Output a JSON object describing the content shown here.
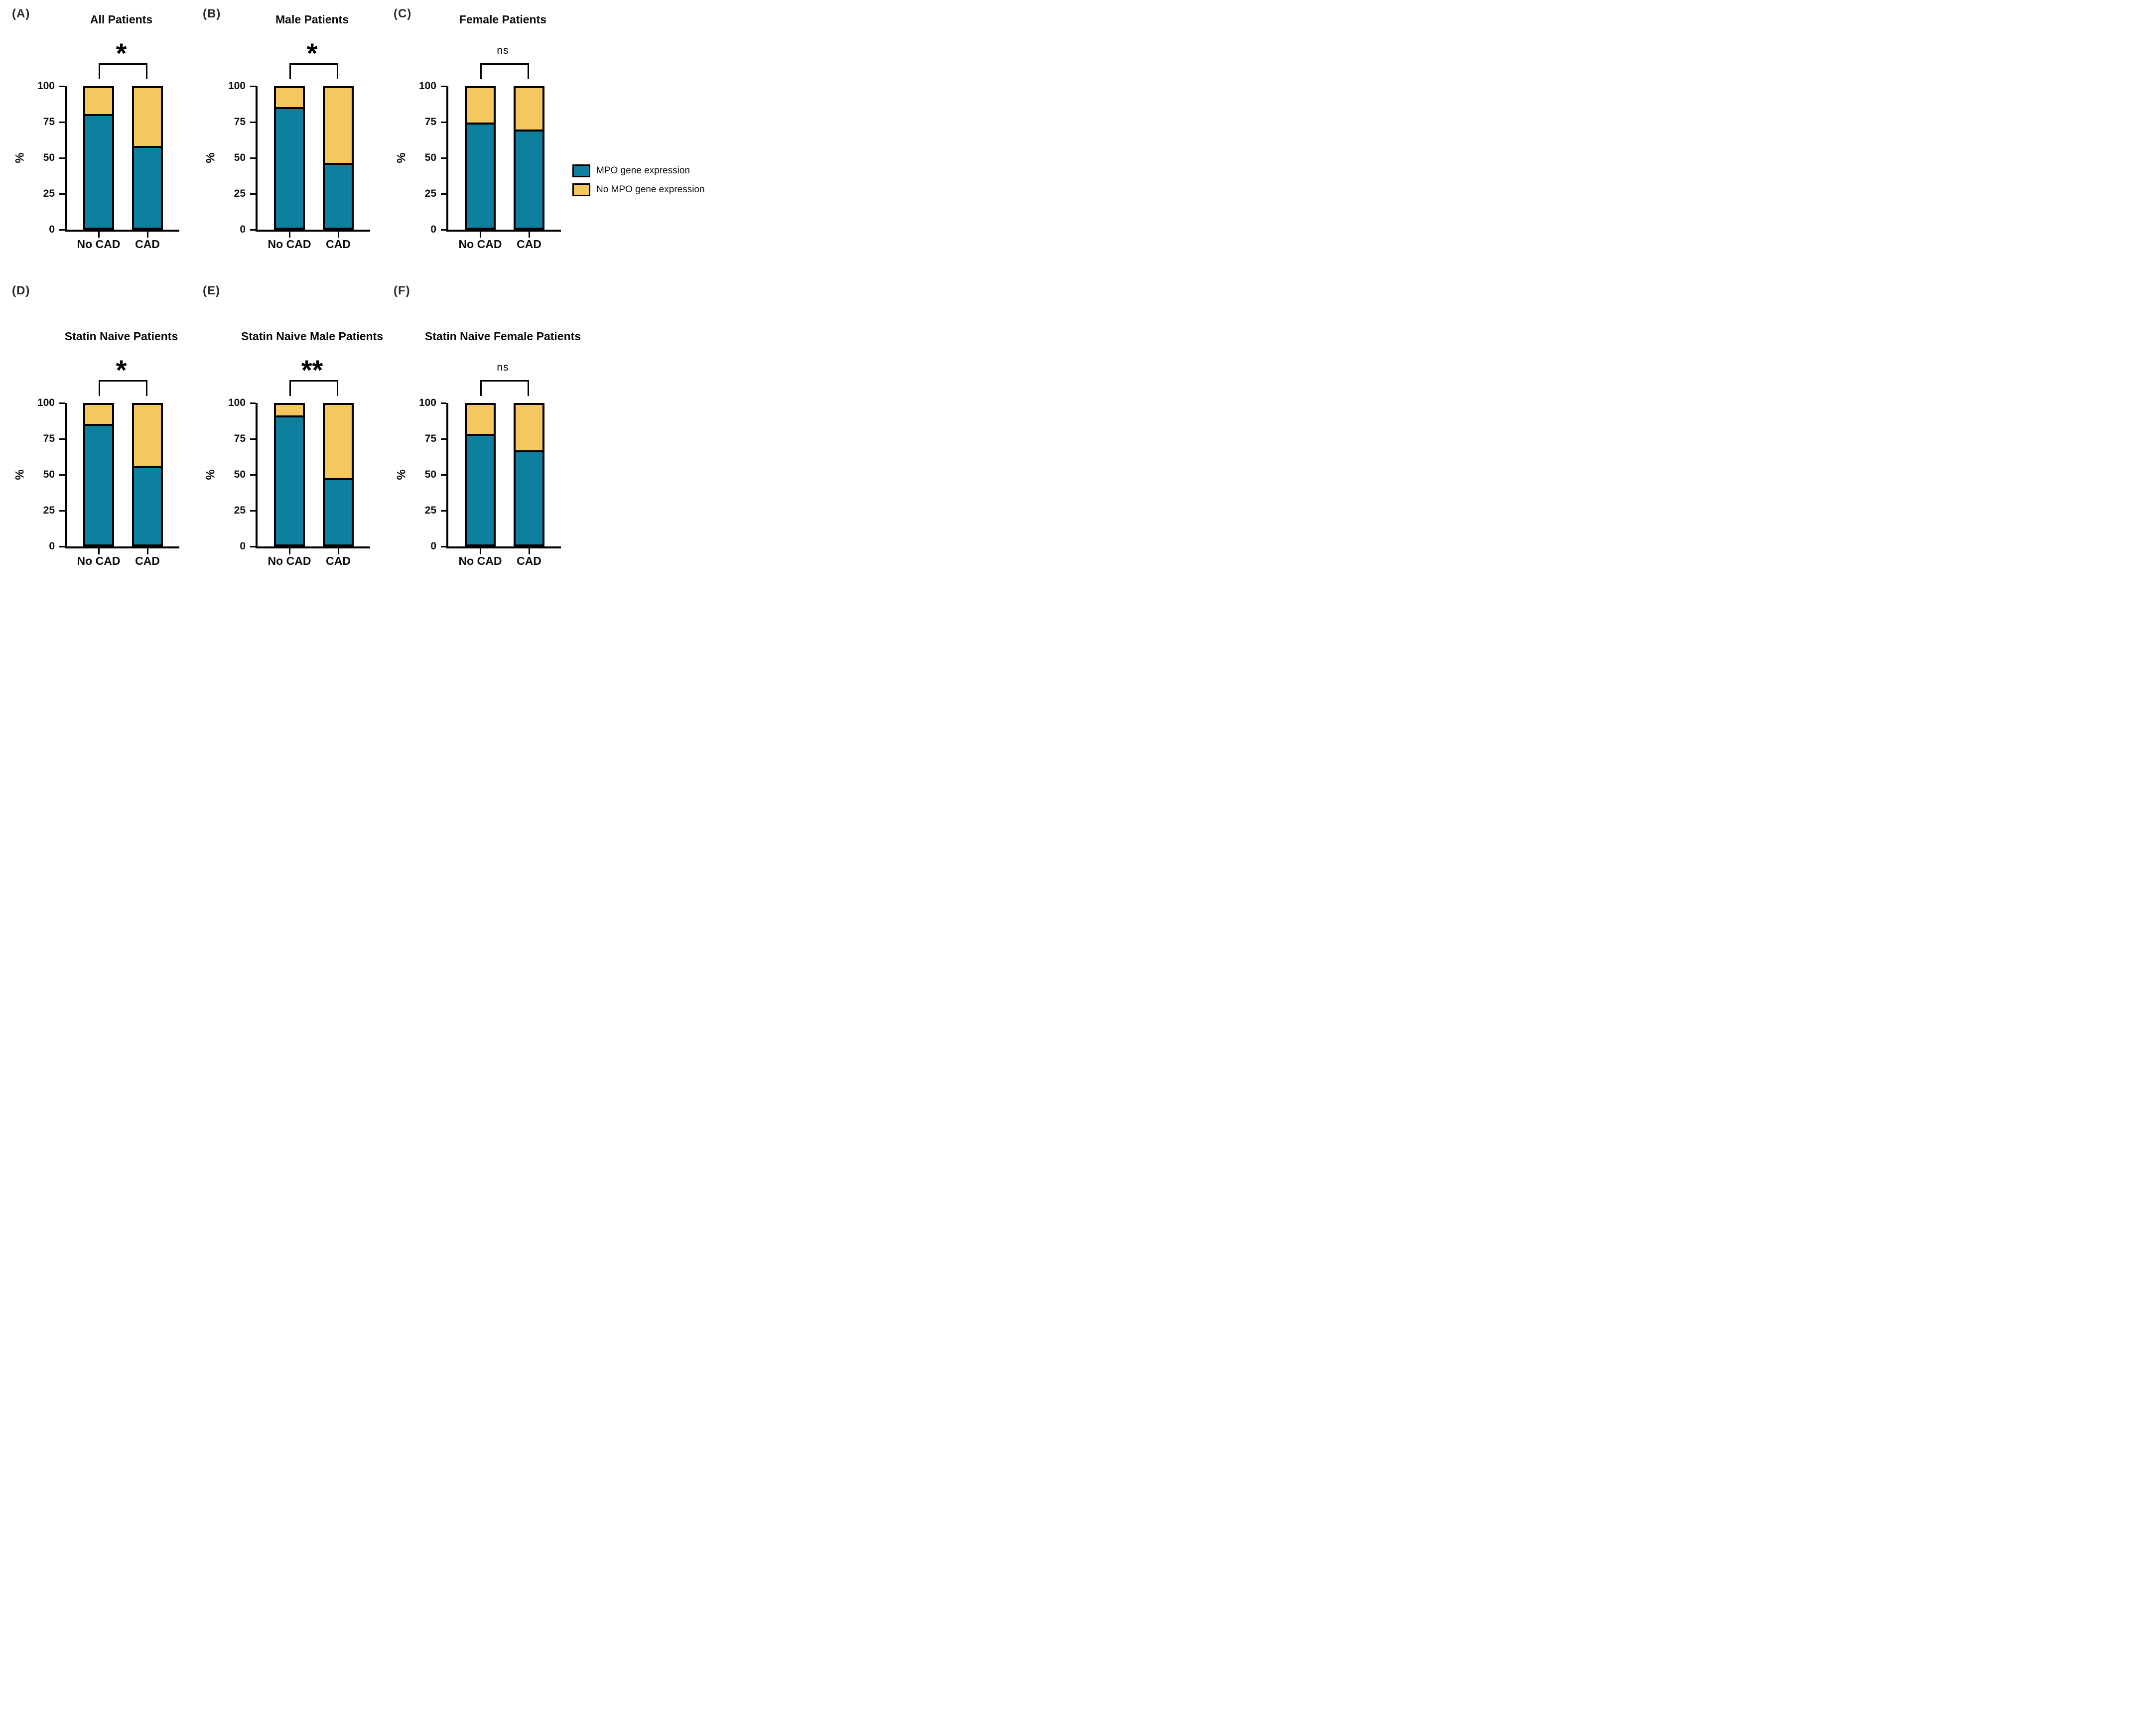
{
  "figure": {
    "legend": {
      "items": [
        {
          "label": "MPO gene expression",
          "color": "#0f7fa0"
        },
        {
          "label": "No MPO gene expression",
          "color": "#f5c761"
        }
      ]
    },
    "colors": {
      "mpo": "#0f7fa0",
      "no_mpo": "#f5c761",
      "outline": "#000000"
    }
  },
  "chart_data": [
    {
      "type": "bar",
      "stacked": true,
      "panel": "(A)",
      "title": "All Patients",
      "significance": "*",
      "categories": [
        "No CAD",
        "CAD"
      ],
      "series": [
        {
          "name": "MPO gene expression",
          "color": "#0f7fa0",
          "values": [
            80,
            57
          ]
        },
        {
          "name": "No MPO gene expression",
          "color": "#f5c761",
          "values": [
            20,
            43
          ]
        }
      ],
      "xlabel": "",
      "ylabel": "%",
      "yticks": [
        0,
        25,
        50,
        75,
        100
      ],
      "ylim": [
        0,
        100
      ],
      "grid": false
    },
    {
      "type": "bar",
      "stacked": true,
      "panel": "(B)",
      "title": "Male Patients",
      "significance": "*",
      "categories": [
        "No CAD",
        "CAD"
      ],
      "series": [
        {
          "name": "MPO gene expression",
          "color": "#0f7fa0",
          "values": [
            85,
            45
          ]
        },
        {
          "name": "No MPO gene expression",
          "color": "#f5c761",
          "values": [
            15,
            55
          ]
        }
      ],
      "xlabel": "",
      "ylabel": "%",
      "yticks": [
        0,
        25,
        50,
        75,
        100
      ],
      "ylim": [
        0,
        100
      ],
      "grid": false
    },
    {
      "type": "bar",
      "stacked": true,
      "panel": "(C)",
      "title": "Female Patients",
      "significance": "ns",
      "categories": [
        "No CAD",
        "CAD"
      ],
      "series": [
        {
          "name": "MPO gene expression",
          "color": "#0f7fa0",
          "values": [
            74,
            69
          ]
        },
        {
          "name": "No MPO gene expression",
          "color": "#f5c761",
          "values": [
            26,
            31
          ]
        }
      ],
      "xlabel": "",
      "ylabel": "%",
      "yticks": [
        0,
        25,
        50,
        75,
        100
      ],
      "ylim": [
        0,
        100
      ],
      "grid": false
    },
    {
      "type": "bar",
      "stacked": true,
      "panel": "(D)",
      "title": "Statin Naive Patients",
      "significance": "*",
      "categories": [
        "No CAD",
        "CAD"
      ],
      "series": [
        {
          "name": "MPO gene expression",
          "color": "#0f7fa0",
          "values": [
            85,
            55
          ]
        },
        {
          "name": "No MPO gene expression",
          "color": "#f5c761",
          "values": [
            15,
            45
          ]
        }
      ],
      "xlabel": "",
      "ylabel": "%",
      "yticks": [
        0,
        25,
        50,
        75,
        100
      ],
      "ylim": [
        0,
        100
      ],
      "grid": false
    },
    {
      "type": "bar",
      "stacked": true,
      "panel": "(E)",
      "title": "Statin Naive Male Patients",
      "significance": "**",
      "categories": [
        "No CAD",
        "CAD"
      ],
      "series": [
        {
          "name": "MPO gene expression",
          "color": "#0f7fa0",
          "values": [
            91,
            46
          ]
        },
        {
          "name": "No MPO gene expression",
          "color": "#f5c761",
          "values": [
            9,
            54
          ]
        }
      ],
      "xlabel": "",
      "ylabel": "%",
      "yticks": [
        0,
        25,
        50,
        75,
        100
      ],
      "ylim": [
        0,
        100
      ],
      "grid": false
    },
    {
      "type": "bar",
      "stacked": true,
      "panel": "(F)",
      "title": "Statin Naive Female Patients",
      "significance": "ns",
      "categories": [
        "No CAD",
        "CAD"
      ],
      "series": [
        {
          "name": "MPO gene expression",
          "color": "#0f7fa0",
          "values": [
            78,
            66
          ]
        },
        {
          "name": "No MPO gene expression",
          "color": "#f5c761",
          "values": [
            22,
            34
          ]
        }
      ],
      "xlabel": "",
      "ylabel": "%",
      "yticks": [
        0,
        25,
        50,
        75,
        100
      ],
      "ylim": [
        0,
        100
      ],
      "grid": false
    }
  ]
}
